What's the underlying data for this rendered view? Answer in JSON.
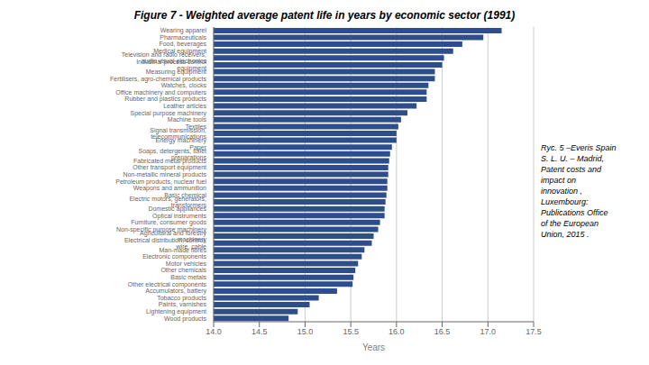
{
  "chart_data": {
    "type": "bar",
    "orientation": "horizontal",
    "title": "Figure 7 - Weighted average patent life in years by economic sector (1991)",
    "xlabel": "Years",
    "categories": [
      "Wearing apparel",
      "Pharmaceuticals",
      "Food, beverages",
      "Medical equipment",
      "Television and radio receivers, audio visual electronics",
      "Industrial process control equipment",
      "Measuring equipment",
      "Fertilisers, agro-chemical products",
      "Watches, clocks",
      "Office machinery and computers",
      "Rubber and plastics products",
      "Leather articles",
      "Special purpose machinery",
      "Machine tools",
      "Textiles",
      "Signal transmission, telecommunications",
      "Energy machinery",
      "Paper",
      "Soaps, detergents, toilet preparations",
      "Fabricated metal products",
      "Other transport equipment",
      "Non-metallic mineral products",
      "Petroleum products, nuclear fuel",
      "Weapons and ammunition",
      "Basic chemical",
      "Electric motors, generators, transformers",
      "Domestic appliances",
      "Optical instruments",
      "Furniture, consumer goods",
      "Non-specific purpose machinery",
      "Agricultural and forestry machinery",
      "Electrical distribution, control, wire, cable",
      "Man-made fibres",
      "Electronic components",
      "Motor vehicles",
      "Other chemicals",
      "Basic metals",
      "Other electrical components",
      "Accumulators, battery",
      "Tobacco products",
      "Paints, varnishes",
      "Lightening equipment",
      "Wood products"
    ],
    "values": [
      17.15,
      16.95,
      16.72,
      16.62,
      16.52,
      16.5,
      16.42,
      16.42,
      16.35,
      16.33,
      16.33,
      16.22,
      16.12,
      16.05,
      16.02,
      16.0,
      16.0,
      15.95,
      15.93,
      15.92,
      15.91,
      15.91,
      15.9,
      15.9,
      15.89,
      15.88,
      15.87,
      15.87,
      15.82,
      15.8,
      15.75,
      15.73,
      15.65,
      15.62,
      15.58,
      15.55,
      15.53,
      15.52,
      15.35,
      15.15,
      15.05,
      14.92,
      14.82
    ],
    "color": "#2e4e8b",
    "xlim": [
      14.0,
      17.5
    ],
    "xticks": [
      {
        "value": 14.0,
        "label": "14.0"
      },
      14.5,
      {
        "value": 15.0,
        "label": "15.0"
      },
      15.5,
      {
        "value": 16.0,
        "label": "16.0"
      },
      16.5,
      {
        "value": 17.0,
        "label": "17.0"
      },
      17.5
    ],
    "grid": true,
    "annotation": "Ryc. 5 –Everis Spain\nS. L. U. – Madrid,\nPatent costs and\nimpact on\ninnovation ,\nLuxembourg:\nPublications Office\nof the European\nUnion, 2015 ."
  }
}
